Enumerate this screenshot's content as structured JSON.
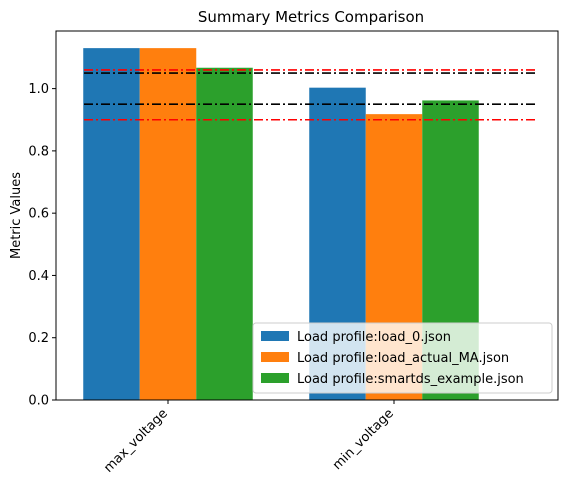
{
  "chart_data": {
    "type": "bar",
    "title": "Summary Metrics Comparison",
    "xlabel": "",
    "ylabel": "Metric Values",
    "categories": [
      "max_voltage",
      "min_voltage"
    ],
    "ylim": [
      0,
      1.185
    ],
    "yticks": [
      0.0,
      0.2,
      0.4,
      0.6,
      0.8,
      1.0
    ],
    "ytick_labels": [
      "0.0",
      "0.2",
      "0.4",
      "0.6",
      "0.8",
      "1.0"
    ],
    "series": [
      {
        "name": "Load profile:load_0.json",
        "color": "#1f77b4",
        "values": [
          1.13,
          1.003
        ]
      },
      {
        "name": "Load profile:load_actual_MA.json",
        "color": "#ff7f0e",
        "values": [
          1.13,
          0.918
        ]
      },
      {
        "name": "Load profile:smartds_example.json",
        "color": "#2ca02c",
        "values": [
          1.067,
          0.962
        ]
      }
    ],
    "reference_lines": [
      {
        "value": 1.06,
        "color": "#ff0000",
        "style": "dashdot"
      },
      {
        "value": 1.05,
        "color": "#000000",
        "style": "dashdot"
      },
      {
        "value": 0.95,
        "color": "#000000",
        "style": "dashdot"
      },
      {
        "value": 0.9,
        "color": "#ff0000",
        "style": "dashdot"
      }
    ],
    "legend_position": "bottom-right",
    "grid": false
  }
}
